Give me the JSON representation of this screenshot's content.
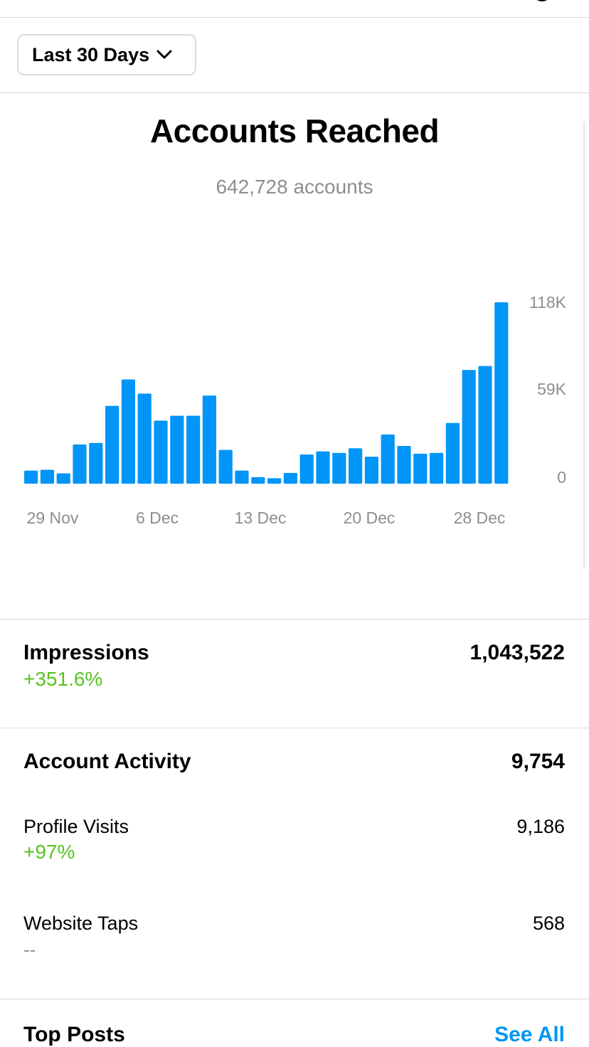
{
  "filter": {
    "range_label": "Last 30 Days"
  },
  "reach": {
    "title": "Accounts Reached",
    "subtitle": "642,728 accounts"
  },
  "chart_data": {
    "type": "bar",
    "title": "",
    "xlabel": "",
    "ylabel": "",
    "ylim": [
      0,
      118000
    ],
    "y_ticks": [
      "118K",
      "59K",
      "0"
    ],
    "x_ticks": [
      "29 Nov",
      "6 Dec",
      "13 Dec",
      "20 Dec",
      "28 Dec"
    ],
    "bar_color": "#0095f6",
    "values": [
      8500,
      9000,
      6700,
      25500,
      26500,
      50600,
      67800,
      58600,
      41000,
      44200,
      44200,
      57300,
      22000,
      8500,
      4200,
      3500,
      7000,
      19000,
      21000,
      20000,
      23000,
      17500,
      32000,
      24500,
      19500,
      20000,
      39500,
      74000,
      76500,
      118000
    ]
  },
  "impressions": {
    "label": "Impressions",
    "change": "+351.6%",
    "value": "1,043,522"
  },
  "activity": {
    "label": "Account Activity",
    "value": "9,754",
    "profile_visits": {
      "label": "Profile Visits",
      "change": "+97%",
      "value": "9,186"
    },
    "website_taps": {
      "label": "Website Taps",
      "change": "--",
      "value": "568"
    }
  },
  "top_posts": {
    "label": "Top Posts",
    "see_all": "See All"
  },
  "colors": {
    "accent": "#0095f6",
    "positive": "#58c322",
    "muted": "#8e8e8e",
    "divider": "#dbdbdb"
  }
}
